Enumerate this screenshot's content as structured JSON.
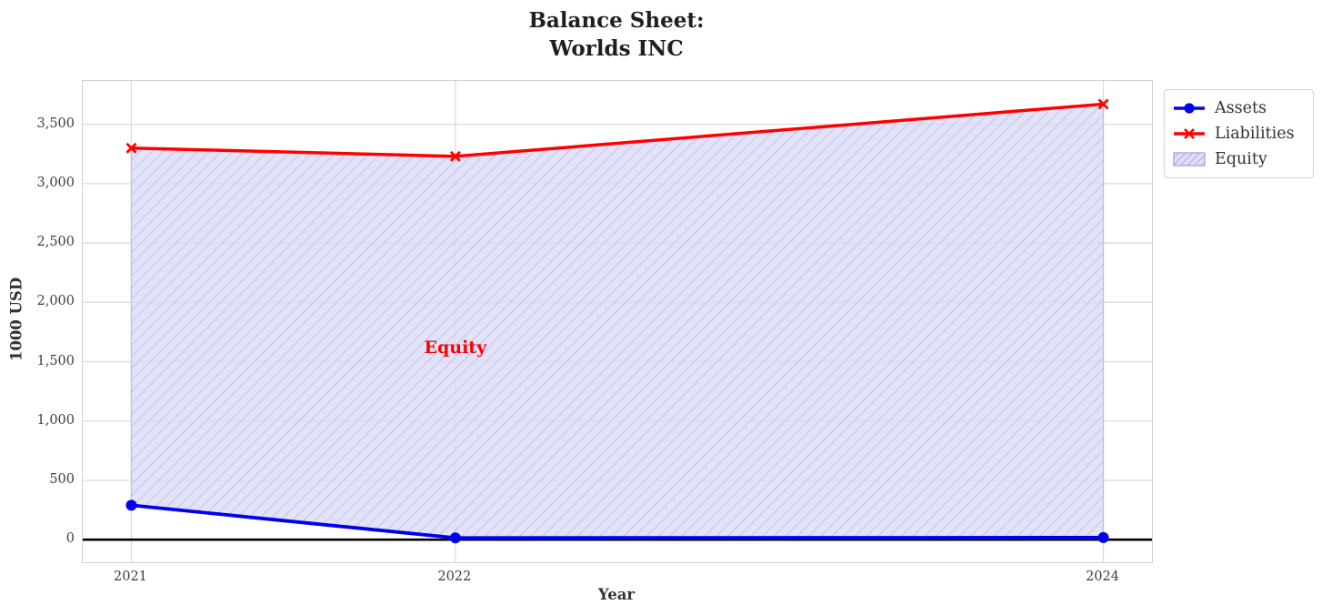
{
  "title": {
    "line1": "Balance Sheet:",
    "line2": "Worlds INC"
  },
  "chart_data": {
    "type": "line",
    "title": "Balance Sheet: Worlds INC",
    "xlabel": "Year",
    "ylabel": "1000 USD",
    "x": [
      2021,
      2022,
      2024
    ],
    "series": [
      {
        "name": "Assets",
        "color": "#0000ee",
        "marker": "circle",
        "values": [
          290,
          15,
          18
        ]
      },
      {
        "name": "Liabilities",
        "color": "#ff0000",
        "marker": "x",
        "values": [
          3300,
          3230,
          3670
        ]
      }
    ],
    "fill_between": {
      "name": "Equity",
      "between": [
        "Assets",
        "Liabilities"
      ],
      "fill_color": "#dcdcf6",
      "edge_color": "#bdbdea",
      "hatch_color": "#bcbcec",
      "hatch": "//"
    },
    "annotation": {
      "text": "Equity",
      "x": 2022,
      "y": 1620,
      "color": "#ff0000"
    },
    "xlim": [
      2020.85,
      2024.15
    ],
    "ylim": [
      -190,
      3865
    ],
    "yticks": [
      0,
      500,
      1000,
      1500,
      2000,
      2500,
      3000,
      3500
    ],
    "ytick_labels": [
      "0",
      "500",
      "1,000",
      "1,500",
      "2,000",
      "2,500",
      "3,000",
      "3,500"
    ],
    "xticks": [
      2021,
      2022,
      2024
    ],
    "xtick_labels": [
      "2021",
      "2022",
      "2024"
    ],
    "zero_line": 0,
    "grid": true,
    "grid_color": "#dcdcdc",
    "legend_position": "outside-top-right"
  },
  "legend": {
    "hatch_color": "#9a9ae2",
    "patch_fill": "#dfdff6",
    "patch_edge": "#aaaadf"
  }
}
